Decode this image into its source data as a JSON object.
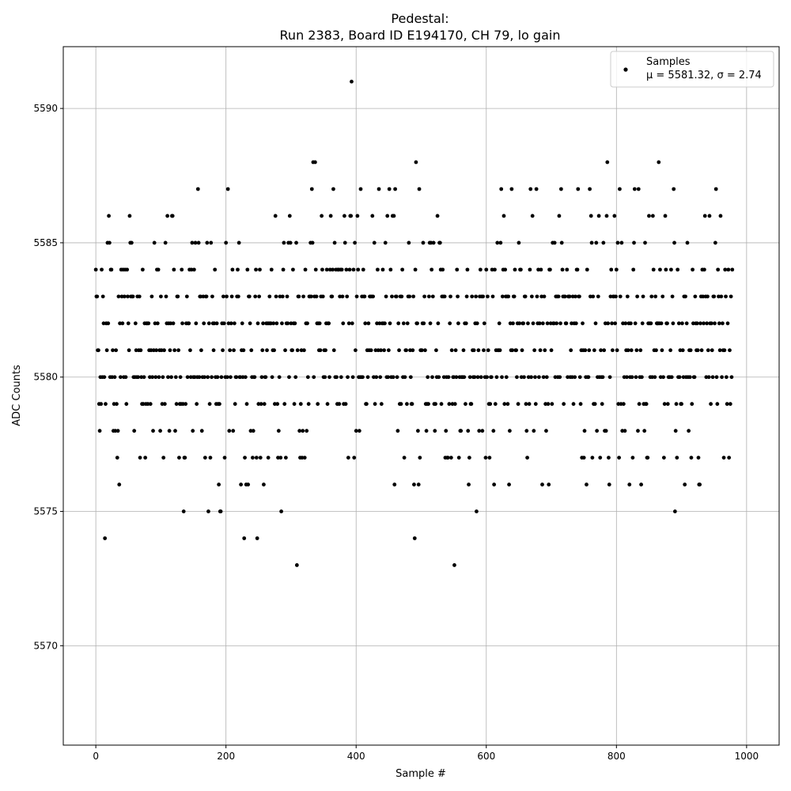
{
  "chart_data": {
    "type": "scatter",
    "title_line1": "Pedestal:",
    "title_line2": "Run 2383, Board ID E194170, CH 79, lo gain",
    "xlabel": "Sample #",
    "ylabel": "ADC Counts",
    "xlim": [
      -50,
      1050
    ],
    "ylim": [
      5566.3,
      5592.3
    ],
    "xticks": [
      0,
      200,
      400,
      600,
      800,
      1000
    ],
    "yticks": [
      5570,
      5575,
      5580,
      5585,
      5590
    ],
    "grid": true,
    "legend_position": "top-right",
    "series": [
      {
        "name": "Samples",
        "stats_label": "μ = 5581.32, σ = 2.74",
        "color": "#000000",
        "y": [
          5584,
          5583,
          5583,
          5581,
          5581,
          5579,
          5578,
          5580,
          5579,
          5584,
          5580,
          5583,
          5582,
          5580,
          5574,
          5579,
          5582,
          5581,
          5585,
          5582,
          5586,
          5585,
          5580,
          5584,
          5584,
          5580,
          5581,
          5578,
          5579,
          5580,
          5578,
          5581,
          5579,
          5577,
          5578,
          5583,
          5576,
          5582,
          5580,
          5584,
          5583,
          5582,
          5584,
          5580,
          5583,
          5584,
          5580,
          5579,
          5584,
          5583,
          5582,
          5581,
          5586,
          5585,
          5583,
          5585,
          5583,
          5583,
          5580,
          5578,
          5580,
          5582,
          5581,
          5580,
          5583,
          5580,
          5581,
          5583,
          5577,
          5581,
          5580,
          5579,
          5584,
          5579,
          5580,
          5582,
          5577,
          5579,
          5582,
          5582,
          5579,
          5582,
          5581,
          5580,
          5579,
          5581,
          5583,
          5580,
          5578,
          5581,
          5585,
          5582,
          5580,
          5581,
          5584,
          5582,
          5584,
          5580,
          5581,
          5578,
          5583,
          5581,
          5579,
          5580,
          5577,
          5581,
          5579,
          5585,
          5583,
          5582,
          5586,
          5580,
          5582,
          5578,
          5581,
          5582,
          5580,
          5586,
          5586,
          5582,
          5584,
          5581,
          5578,
          5580,
          5579,
          5583,
          5583,
          5581,
          5577,
          5579,
          5580,
          5579,
          5584,
          5582,
          5579,
          5575,
          5577,
          5577,
          5579,
          5582,
          5583,
          5580,
          5582,
          5582,
          5584,
          5581,
          5580,
          5584,
          5585,
          5578,
          5580,
          5584,
          5580,
          5585,
          5582,
          5579,
          5580,
          5587,
          5585,
          5580,
          5583,
          5583,
          5581,
          5578,
          5580,
          5583,
          5582,
          5580,
          5577,
          5583,
          5583,
          5585,
          5580,
          5575,
          5582,
          5579,
          5577,
          5585,
          5580,
          5583,
          5582,
          5581,
          5582,
          5584,
          5580,
          5579,
          5582,
          5580,
          5579,
          5576,
          5579,
          5575,
          5575,
          5580,
          5582,
          5581,
          5583,
          5582,
          5577,
          5580,
          5585,
          5583,
          5580,
          5587,
          5582,
          5578,
          5581,
          5580,
          5582,
          5583,
          5584,
          5578,
          5581,
          5582,
          5579,
          5580,
          5580,
          5583,
          5584,
          5583,
          5585,
          5580,
          5580,
          5576,
          5581,
          5582,
          5580,
          5581,
          5574,
          5577,
          5580,
          5576,
          5579,
          5584,
          5576,
          5583,
          5583,
          5582,
          5578,
          5581,
          5580,
          5577,
          5578,
          5580,
          5580,
          5583,
          5584,
          5577,
          5574,
          5582,
          5579,
          5583,
          5584,
          5577,
          5579,
          5580,
          5581,
          5582,
          5576,
          5579,
          5580,
          5580,
          5582,
          5581,
          5582,
          5577,
          5582,
          5583,
          5582,
          5582,
          5584,
          5580,
          5581,
          5582,
          5581,
          5579,
          5586,
          5583,
          5582,
          5579,
          5577,
          5578,
          5580,
          5583,
          5577,
          5575,
          5582,
          5583,
          5584,
          5585,
          5579,
          5581,
          5577,
          5582,
          5583,
          5582,
          5585,
          5580,
          5586,
          5585,
          5582,
          5581,
          5581,
          5584,
          5582,
          5579,
          5582,
          5580,
          5585,
          5573,
          5581,
          5583,
          5583,
          5578,
          5577,
          5579,
          5581,
          5577,
          5578,
          5583,
          5581,
          5577,
          5584,
          5582,
          5578,
          5582,
          5580,
          5579,
          5583,
          5583,
          5585,
          5583,
          5587,
          5585,
          5588,
          5580,
          5583,
          5588,
          5584,
          5583,
          5582,
          5579,
          5582,
          5581,
          5582,
          5581,
          5583,
          5586,
          5584,
          5583,
          5580,
          5581,
          5580,
          5581,
          5582,
          5584,
          5579,
          5582,
          5582,
          5580,
          5584,
          5586,
          5583,
          5583,
          5584,
          5587,
          5581,
          5585,
          5580,
          5584,
          5580,
          5579,
          5584,
          5584,
          5579,
          5583,
          5584,
          5580,
          5584,
          5583,
          5582,
          5579,
          5586,
          5585,
          5579,
          5584,
          5583,
          5580,
          5577,
          5582,
          5584,
          5586,
          5586,
          5591,
          5582,
          5580,
          5584,
          5577,
          5585,
          5581,
          5578,
          5583,
          5586,
          5584,
          5580,
          5578,
          5580,
          5587,
          5580,
          5583,
          5580,
          5584,
          5583,
          5583,
          5582,
          5579,
          5579,
          5581,
          5580,
          5582,
          5581,
          5583,
          5583,
          5581,
          5583,
          5586,
          5583,
          5580,
          5585,
          5579,
          5581,
          5580,
          5582,
          5584,
          5581,
          5587,
          5582,
          5580,
          5581,
          5579,
          5582,
          5584,
          5582,
          5581,
          5582,
          5585,
          5583,
          5580,
          5586,
          5580,
          5581,
          5587,
          5582,
          5584,
          5580,
          5583,
          5586,
          5580,
          5586,
          5576,
          5587,
          5583,
          5583,
          5580,
          5578,
          5582,
          5581,
          5579,
          5583,
          5579,
          5583,
          5584,
          5580,
          5582,
          5577,
          5580,
          5581,
          5581,
          5579,
          5582,
          5583,
          5585,
          5583,
          5581,
          5580,
          5579,
          5579,
          5581,
          5583,
          5576,
          5574,
          5584,
          5588,
          5582,
          5582,
          5578,
          5576,
          5587,
          5577,
          5581,
          5581,
          5581,
          5582,
          5585,
          5582,
          5583,
          5581,
          5579,
          5578,
          5579,
          5580,
          5579,
          5583,
          5585,
          5582,
          5585,
          5584,
          5580,
          5583,
          5585,
          5579,
          5578,
          5579,
          5581,
          5580,
          5586,
          5582,
          5580,
          5585,
          5585,
          5584,
          5579,
          5583,
          5584,
          5583,
          5580,
          5583,
          5577,
          5578,
          5580,
          5577,
          5577,
          5580,
          5579,
          5582,
          5583,
          5577,
          5581,
          5579,
          5580,
          5580,
          5573,
          5579,
          5581,
          5580,
          5584,
          5583,
          5582,
          5577,
          5580,
          5578,
          5578,
          5580,
          5580,
          5580,
          5581,
          5580,
          5582,
          5579,
          5582,
          5583,
          5584,
          5578,
          5576,
          5577,
          5580,
          5579,
          5579,
          5583,
          5581,
          5580,
          5581,
          5580,
          5582,
          5583,
          5575,
          5582,
          5580,
          5581,
          5578,
          5583,
          5584,
          5580,
          5583,
          5578,
          5583,
          5581,
          5582,
          5580,
          5577,
          5584,
          5580,
          5583,
          5581,
          5579,
          5577,
          5579,
          5580,
          5580,
          5584,
          5583,
          5578,
          5576,
          5584,
          5579,
          5581,
          5580,
          5585,
          5581,
          5581,
          5582,
          5581,
          5585,
          5587,
          5580,
          5583,
          5584,
          5586,
          5579,
          5584,
          5583,
          5580,
          5583,
          5579,
          5583,
          5576,
          5578,
          5582,
          5581,
          5587,
          5581,
          5582,
          5583,
          5583,
          5584,
          5581,
          5581,
          5580,
          5582,
          5579,
          5585,
          5582,
          5584,
          5584,
          5580,
          5581,
          5582,
          5582,
          5580,
          5583,
          5583,
          5579,
          5578,
          5577,
          5582,
          5580,
          5579,
          5584,
          5587,
          5580,
          5583,
          5586,
          5582,
          5578,
          5581,
          5580,
          5579,
          5587,
          5583,
          5582,
          5584,
          5580,
          5582,
          5581,
          5584,
          5583,
          5576,
          5582,
          5580,
          5583,
          5581,
          5579,
          5578,
          5580,
          5582,
          5579,
          5576,
          5584,
          5584,
          5582,
          5581,
          5579,
          5585,
          5582,
          5582,
          5585,
          5580,
          5583,
          5582,
          5583,
          5580,
          5583,
          5586,
          5580,
          5582,
          5587,
          5585,
          5584,
          5583,
          5579,
          5583,
          5583,
          5582,
          5582,
          5584,
          5580,
          5583,
          5583,
          5583,
          5580,
          5581,
          5582,
          5580,
          5583,
          5579,
          5582,
          5580,
          5583,
          5582,
          5584,
          5584,
          5587,
          5583,
          5583,
          5580,
          5579,
          5581,
          5577,
          5582,
          5581,
          5577,
          5578,
          5581,
          5580,
          5576,
          5584,
          5580,
          5580,
          5581,
          5587,
          5583,
          5586,
          5585,
          5577,
          5583,
          5579,
          5581,
          5579,
          5582,
          5585,
          5578,
          5580,
          5583,
          5586,
          5580,
          5577,
          5581,
          5580,
          5579,
          5580,
          5585,
          5581,
          5578,
          5582,
          5578,
          5586,
          5588,
          5582,
          5577,
          5576,
          5580,
          5583,
          5584,
          5582,
          5581,
          5583,
          5583,
          5586,
          5582,
          5583,
          5584,
          5581,
          5585,
          5579,
          5577,
          5587,
          5583,
          5579,
          5585,
          5578,
          5582,
          5579,
          5580,
          5578,
          5582,
          5581,
          5580,
          5583,
          5581,
          5582,
          5576,
          5580,
          5582,
          5581,
          5580,
          5577,
          5584,
          5585,
          5587,
          5582,
          5580,
          5581,
          5583,
          5578,
          5587,
          5579,
          5580,
          5581,
          5576,
          5580,
          5582,
          5583,
          5579,
          5578,
          5585,
          5579,
          5579,
          5577,
          5577,
          5582,
          5586,
          5582,
          5580,
          5582,
          5583,
          5580,
          5586,
          5584,
          5581,
          5580,
          5583,
          5581,
          5582,
          5582,
          5582,
          5588,
          5582,
          5584,
          5580,
          5582,
          5581,
          5583,
          5580,
          5577,
          5579,
          5586,
          5584,
          5582,
          5582,
          5579,
          5580,
          5580,
          5580,
          5581,
          5584,
          5580,
          5583,
          5582,
          5587,
          5585,
          5575,
          5578,
          5579,
          5577,
          5584,
          5580,
          5582,
          5580,
          5581,
          5579,
          5579,
          5582,
          5581,
          5580,
          5583,
          5576,
          5583,
          5580,
          5582,
          5585,
          5580,
          5578,
          5581,
          5580,
          5581,
          5577,
          5579,
          5584,
          5582,
          5580,
          5580,
          5583,
          5582,
          5581,
          5582,
          5581,
          5577,
          5576,
          5576,
          5582,
          5583,
          5581,
          5584,
          5583,
          5582,
          5584,
          5586,
          5583,
          5580,
          5582,
          5583,
          5581,
          5580,
          5586,
          5582,
          5579,
          5582,
          5581,
          5580,
          5583,
          5583,
          5582,
          5585,
          5587,
          5580,
          5579,
          5584,
          5583,
          5582,
          5581,
          5586,
          5583,
          5580,
          5582,
          5581,
          5577,
          5581,
          5584,
          5583,
          5580,
          5579,
          5582,
          5584,
          5577,
          5581,
          5579,
          5583,
          5580,
          5584
        ]
      }
    ]
  }
}
